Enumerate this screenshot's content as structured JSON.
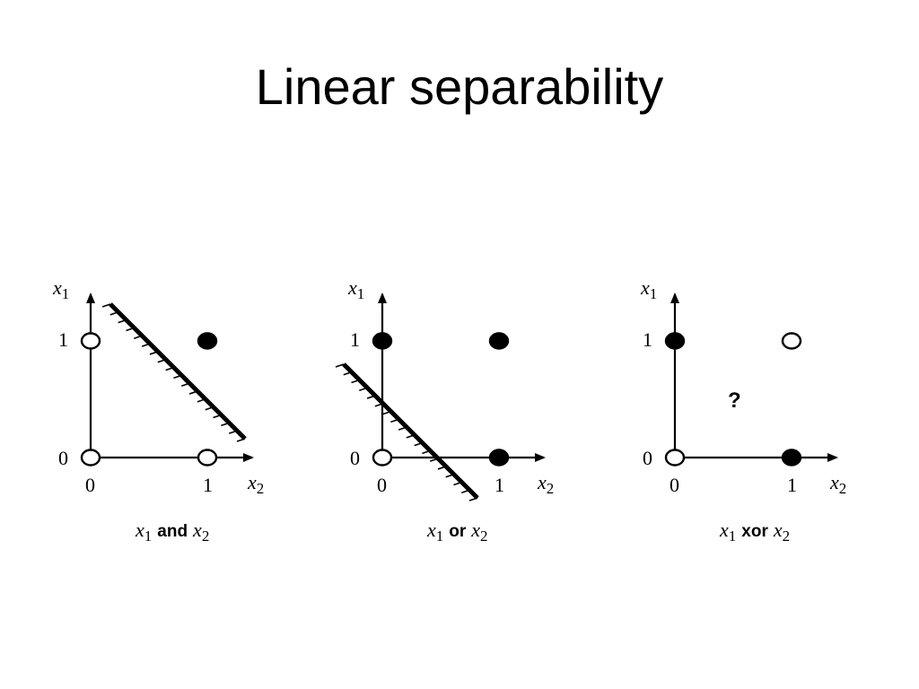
{
  "title": "Linear separability",
  "axis": {
    "y_var": "x",
    "y_sub": "1",
    "x_var": "x",
    "x_sub": "2",
    "tick_zero": "0",
    "tick_one": "1"
  },
  "panels": [
    {
      "caption": {
        "left_var": "x",
        "left_sub": "1",
        "op": "and",
        "right_var": "x",
        "right_sub": "2"
      },
      "points": [
        {
          "x1": 0,
          "x2": 0,
          "filled": false
        },
        {
          "x1": 0,
          "x2": 1,
          "filled": false
        },
        {
          "x1": 1,
          "x2": 0,
          "filled": false
        },
        {
          "x1": 1,
          "x2": 1,
          "filled": true
        }
      ],
      "separator": true
    },
    {
      "caption": {
        "left_var": "x",
        "left_sub": "1",
        "op": "or",
        "right_var": "x",
        "right_sub": "2"
      },
      "points": [
        {
          "x1": 0,
          "x2": 0,
          "filled": false
        },
        {
          "x1": 0,
          "x2": 1,
          "filled": true
        },
        {
          "x1": 1,
          "x2": 0,
          "filled": true
        },
        {
          "x1": 1,
          "x2": 1,
          "filled": true
        }
      ],
      "separator": true
    },
    {
      "caption": {
        "left_var": "x",
        "left_sub": "1",
        "op": "xor",
        "right_var": "x",
        "right_sub": "2"
      },
      "points": [
        {
          "x1": 0,
          "x2": 0,
          "filled": false
        },
        {
          "x1": 0,
          "x2": 1,
          "filled": true
        },
        {
          "x1": 1,
          "x2": 0,
          "filled": true
        },
        {
          "x1": 1,
          "x2": 1,
          "filled": false
        }
      ],
      "separator": false,
      "question_mark": "?"
    }
  ]
}
